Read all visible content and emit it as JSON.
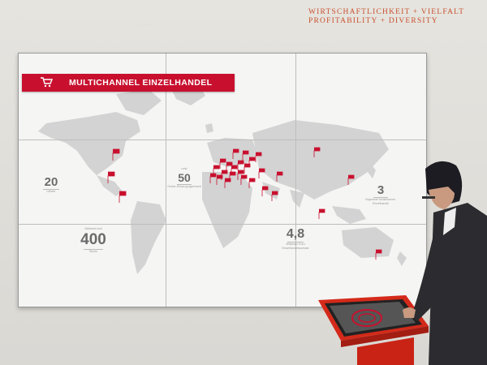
{
  "wall": {
    "line1": "WIRTSCHAFTLICHKEIT + VIELFALT",
    "line2": "PROFITABILITY + DIVERSITY"
  },
  "screen": {
    "title": "MULTICHANNEL EINZELHANDEL",
    "stats": [
      {
        "prefix": "",
        "value": "20",
        "caption": "Länder"
      },
      {
        "prefix": "rund",
        "value": "50",
        "caption": "Online-Shops gruppenweit"
      },
      {
        "prefix": "",
        "value": "3",
        "caption": "Segmente Multichannel-Einzelhandel"
      },
      {
        "prefix": "Weltweit rund",
        "value": "400",
        "caption": "Stores"
      },
      {
        "prefix": "",
        "value": "4,8",
        "caption": "Milliarden Euro Einzelhandelsumsatz"
      }
    ]
  },
  "colors": {
    "accent": "#c8102e",
    "wall_text": "#c8502e"
  },
  "icons": [
    "cart-icon",
    "flag-marker"
  ]
}
